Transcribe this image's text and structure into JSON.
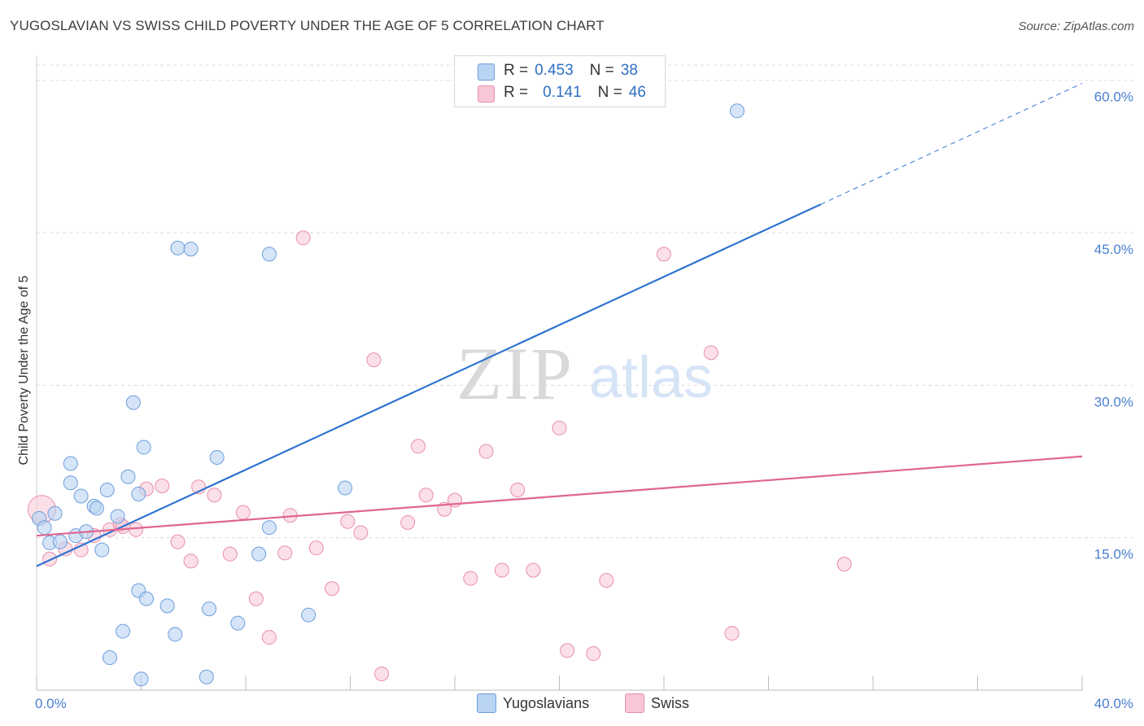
{
  "title": "YUGOSLAVIAN VS SWISS CHILD POVERTY UNDER THE AGE OF 5 CORRELATION CHART",
  "source": "Source: ZipAtlas.com",
  "watermark": {
    "zip": "ZIP",
    "atlas": "atlas"
  },
  "legend": {
    "rows": [
      {
        "r_label": "R =",
        "r_value": "0.453",
        "n_label": "N =",
        "n_value": "38"
      },
      {
        "r_label": "R =",
        "r_value": "0.141",
        "n_label": "N =",
        "n_value": "46"
      }
    ]
  },
  "bottom_legend": {
    "series1": "Yugoslavians",
    "series2": "Swiss"
  },
  "colors": {
    "blue_fill": "#b9d3f2",
    "blue_stroke": "#6d9edc",
    "blue_line": "#2f74d0",
    "pink_fill": "#f8c6d5",
    "pink_stroke": "#e88fab",
    "pink_line": "#e0668f",
    "grid": "#dcdcdc",
    "tick_label": "#4a7fd0"
  },
  "chart_data": {
    "type": "scatter",
    "title": "YUGOSLAVIAN VS SWISS CHILD POVERTY UNDER THE AGE OF 5 CORRELATION CHART",
    "xlabel": "",
    "ylabel": "Child Poverty Under the Age of 5",
    "xlim": [
      0,
      40
    ],
    "ylim": [
      0,
      60
    ],
    "x_tick_labels": [
      "0.0%",
      "40.0%"
    ],
    "y_ticks": [
      15,
      30,
      45,
      60
    ],
    "y_tick_labels": [
      "15.0%",
      "30.0%",
      "45.0%",
      "60.0%"
    ],
    "grid": true,
    "series": [
      {
        "name": "Yugoslavians",
        "r": 0.453,
        "n": 38,
        "points": [
          [
            0.1,
            16.9
          ],
          [
            0.3,
            16.0
          ],
          [
            0.7,
            17.4
          ],
          [
            0.5,
            14.5
          ],
          [
            0.9,
            14.6
          ],
          [
            1.3,
            22.3
          ],
          [
            1.3,
            20.4
          ],
          [
            1.7,
            19.1
          ],
          [
            1.5,
            15.2
          ],
          [
            1.9,
            15.6
          ],
          [
            2.2,
            18.1
          ],
          [
            2.3,
            17.9
          ],
          [
            2.5,
            13.8
          ],
          [
            2.7,
            19.7
          ],
          [
            3.1,
            17.1
          ],
          [
            3.5,
            21.0
          ],
          [
            3.7,
            28.3
          ],
          [
            4.1,
            23.9
          ],
          [
            3.9,
            19.3
          ],
          [
            5.4,
            43.5
          ],
          [
            5.9,
            43.4
          ],
          [
            6.9,
            22.9
          ],
          [
            8.9,
            42.9
          ],
          [
            8.5,
            13.4
          ],
          [
            8.9,
            16.0
          ],
          [
            11.8,
            19.9
          ],
          [
            3.9,
            9.8
          ],
          [
            4.2,
            9.0
          ],
          [
            5.0,
            8.3
          ],
          [
            6.6,
            8.0
          ],
          [
            7.7,
            6.6
          ],
          [
            10.4,
            7.4
          ],
          [
            3.3,
            5.8
          ],
          [
            5.3,
            5.5
          ],
          [
            2.8,
            3.2
          ],
          [
            4.0,
            1.1
          ],
          [
            6.5,
            1.3
          ],
          [
            26.8,
            57.0
          ]
        ],
        "trend": {
          "x": [
            0,
            30
          ],
          "y": [
            12.2,
            47.8
          ],
          "dashed_extension": {
            "x": [
              30,
              40
            ],
            "y": [
              47.8,
              59.7
            ]
          }
        }
      },
      {
        "name": "Swiss",
        "r": 0.141,
        "n": 46,
        "points": [
          [
            0.2,
            17.8
          ],
          [
            0.5,
            12.9
          ],
          [
            1.1,
            13.9
          ],
          [
            1.7,
            13.8
          ],
          [
            2.2,
            15.2
          ],
          [
            2.8,
            15.8
          ],
          [
            3.2,
            16.3
          ],
          [
            3.8,
            15.8
          ],
          [
            4.2,
            19.8
          ],
          [
            4.8,
            20.1
          ],
          [
            5.4,
            14.6
          ],
          [
            5.9,
            12.7
          ],
          [
            6.2,
            20.0
          ],
          [
            6.8,
            19.2
          ],
          [
            7.4,
            13.4
          ],
          [
            7.9,
            17.5
          ],
          [
            8.4,
            9.0
          ],
          [
            8.9,
            5.2
          ],
          [
            9.5,
            13.5
          ],
          [
            9.7,
            17.2
          ],
          [
            10.2,
            44.5
          ],
          [
            10.7,
            14.0
          ],
          [
            11.3,
            10.0
          ],
          [
            11.9,
            16.6
          ],
          [
            12.4,
            15.5
          ],
          [
            12.9,
            32.5
          ],
          [
            13.2,
            1.6
          ],
          [
            14.2,
            16.5
          ],
          [
            14.6,
            24.0
          ],
          [
            14.9,
            19.2
          ],
          [
            15.6,
            17.8
          ],
          [
            16.0,
            18.7
          ],
          [
            16.6,
            11.0
          ],
          [
            17.2,
            23.5
          ],
          [
            17.8,
            11.8
          ],
          [
            18.4,
            19.7
          ],
          [
            19.0,
            11.8
          ],
          [
            20.0,
            25.8
          ],
          [
            20.3,
            3.9
          ],
          [
            21.3,
            3.6
          ],
          [
            21.8,
            10.8
          ],
          [
            24.0,
            42.9
          ],
          [
            25.8,
            33.2
          ],
          [
            26.6,
            5.6
          ],
          [
            30.9,
            12.4
          ],
          [
            3.3,
            16.1
          ]
        ],
        "trend": {
          "x": [
            0,
            40
          ],
          "y": [
            15.2,
            23.0
          ]
        }
      }
    ]
  }
}
